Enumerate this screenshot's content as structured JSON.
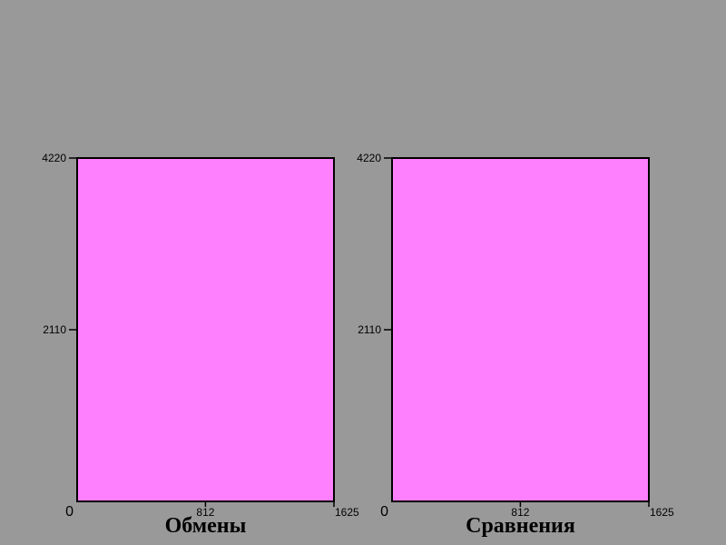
{
  "colors": {
    "background": "#999999",
    "plot_fill": "#ff80ff",
    "axis": "#000000"
  },
  "chart_data": [
    {
      "type": "area",
      "title": "Обмены",
      "xlim": [
        0,
        1625
      ],
      "ylim": [
        0,
        4220
      ],
      "x_ticks": [
        {
          "value": 0,
          "label": "0"
        },
        {
          "value": 812,
          "label": "812"
        },
        {
          "value": 1625,
          "label": "1625"
        }
      ],
      "y_ticks": [
        {
          "value": 2110,
          "label": "2110"
        },
        {
          "value": 4220,
          "label": "4220"
        }
      ],
      "series": [
        {
          "values": [
            [
              0,
              4220
            ],
            [
              1625,
              4220
            ]
          ]
        }
      ]
    },
    {
      "type": "area",
      "title": "Сравнения",
      "xlim": [
        0,
        1625
      ],
      "ylim": [
        0,
        4220
      ],
      "x_ticks": [
        {
          "value": 0,
          "label": "0"
        },
        {
          "value": 812,
          "label": "812"
        },
        {
          "value": 1625,
          "label": "1625"
        }
      ],
      "y_ticks": [
        {
          "value": 2110,
          "label": "2110"
        },
        {
          "value": 4220,
          "label": "4220"
        }
      ],
      "series": [
        {
          "values": [
            [
              0,
              4220
            ],
            [
              1625,
              4220
            ]
          ]
        }
      ]
    }
  ]
}
